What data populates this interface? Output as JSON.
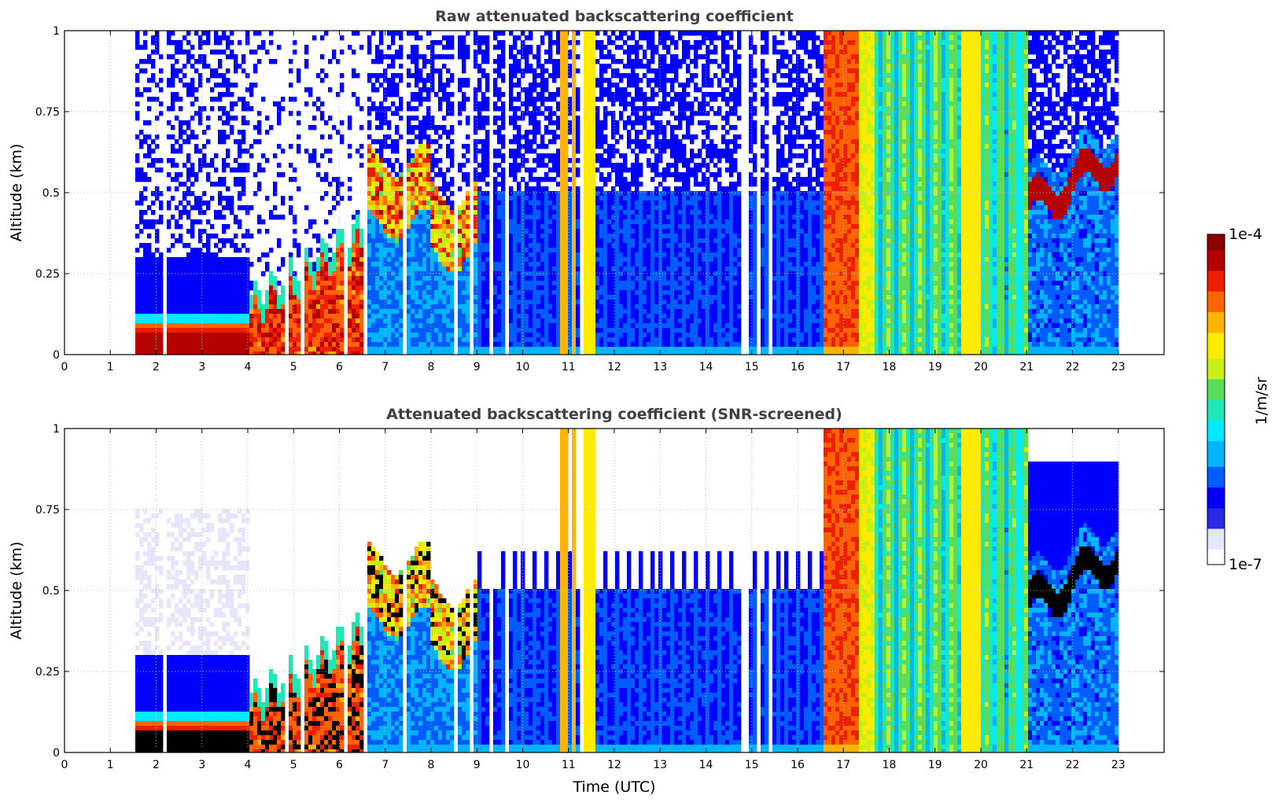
{
  "colors": {
    "colormap": [
      "#ffffff",
      "#e6e6fa",
      "#2a2ae6",
      "#0000ff",
      "#005cff",
      "#00b4ff",
      "#00eaff",
      "#1ee6b4",
      "#5adc5a",
      "#c8f014",
      "#ffeb00",
      "#ffb400",
      "#ff6400",
      "#f01e00",
      "#b40000",
      "#8b0000"
    ],
    "grid": "#c0c0c0",
    "masked": "#000000"
  },
  "chart_data": [
    {
      "type": "heatmap",
      "title": "Raw attenuated backscattering coefficient",
      "xlabel": "",
      "ylabel": "Altitude (km)",
      "xlim": [
        0,
        24
      ],
      "ylim": [
        0,
        1
      ],
      "xticks": [
        "0",
        "1",
        "2",
        "3",
        "4",
        "5",
        "6",
        "7",
        "8",
        "9",
        "10",
        "11",
        "12",
        "13",
        "14",
        "15",
        "16",
        "17",
        "18",
        "19",
        "20",
        "21",
        "22",
        "23"
      ],
      "yticks": [
        "0",
        "0.25",
        "0.5",
        "0.75",
        "1"
      ],
      "grid": true,
      "screened": false,
      "data_start_utc": 1.55,
      "data_end_utc": 23.0,
      "regimes": [
        {
          "t0": 1.55,
          "t1": 4.0,
          "surface_layer_top_km": 0.1,
          "above": "sparse blue speckle"
        },
        {
          "t0": 4.0,
          "t1": 6.5,
          "boundary_layer_top_km": 0.35,
          "core": "dark red",
          "above": "white"
        },
        {
          "t0": 6.5,
          "t1": 9.0,
          "aerosol_top_km": 0.45,
          "core": "cyan/blue"
        },
        {
          "t0": 10.8,
          "t1": 11.6,
          "column": "orange/yellow full height"
        },
        {
          "t0": 16.6,
          "t1": 17.4,
          "column": "red full height"
        },
        {
          "t0": 17.4,
          "t1": 19.6,
          "column": "cyan/green full height"
        },
        {
          "t0": 19.6,
          "t1": 20.0,
          "column": "yellow full height"
        },
        {
          "t0": 21.0,
          "t1": 23.0,
          "cloud_layer_km": [
            0.2,
            0.7
          ],
          "core": "dark red"
        }
      ]
    },
    {
      "type": "heatmap",
      "title": "Attenuated backscattering coefficient (SNR-screened)",
      "xlabel": "Time (UTC)",
      "ylabel": "Altitude (km)",
      "xlim": [
        0,
        24
      ],
      "ylim": [
        0,
        1
      ],
      "xticks": [
        "0",
        "1",
        "2",
        "3",
        "4",
        "5",
        "6",
        "7",
        "8",
        "9",
        "10",
        "11",
        "12",
        "13",
        "14",
        "15",
        "16",
        "17",
        "18",
        "19",
        "20",
        "21",
        "22",
        "23"
      ],
      "yticks": [
        "0",
        "0.25",
        "0.5",
        "0.75",
        "1"
      ],
      "grid": true,
      "screened": true,
      "data_start_utc": 1.55,
      "data_end_utc": 23.0
    }
  ],
  "colorbar": {
    "label": "1/m/sr",
    "max_label": "1e-4",
    "min_label": "1e-7",
    "scale": "log",
    "range": [
      1e-07,
      0.0001
    ]
  }
}
